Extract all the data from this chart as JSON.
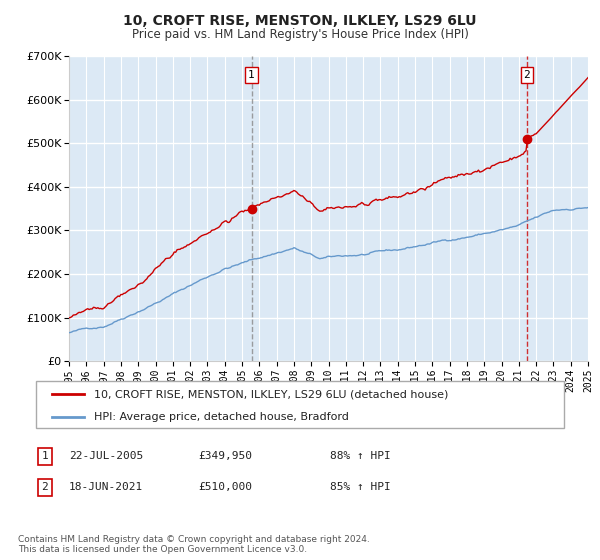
{
  "title": "10, CROFT RISE, MENSTON, ILKLEY, LS29 6LU",
  "subtitle": "Price paid vs. HM Land Registry's House Price Index (HPI)",
  "x_start_year": 1995,
  "x_end_year": 2025,
  "ylim": [
    0,
    700000
  ],
  "yticks": [
    0,
    100000,
    200000,
    300000,
    400000,
    500000,
    600000,
    700000
  ],
  "ytick_labels": [
    "£0",
    "£100K",
    "£200K",
    "£300K",
    "£400K",
    "£500K",
    "£600K",
    "£700K"
  ],
  "sale1_date": 2005.55,
  "sale1_price": 349950,
  "sale1_label": "1",
  "sale1_text": "22-JUL-2005",
  "sale1_price_text": "£349,950",
  "sale1_hpi": "88% ↑ HPI",
  "sale2_date": 2021.46,
  "sale2_price": 510000,
  "sale2_label": "2",
  "sale2_text": "18-JUN-2021",
  "sale2_price_text": "£510,000",
  "sale2_hpi": "85% ↑ HPI",
  "background_fill_color": "#dce9f5",
  "grid_color": "#ffffff",
  "red_line_color": "#cc0000",
  "blue_line_color": "#6699cc",
  "legend1": "10, CROFT RISE, MENSTON, ILKLEY, LS29 6LU (detached house)",
  "legend2": "HPI: Average price, detached house, Bradford",
  "footer": "Contains HM Land Registry data © Crown copyright and database right 2024.\nThis data is licensed under the Open Government Licence v3.0."
}
